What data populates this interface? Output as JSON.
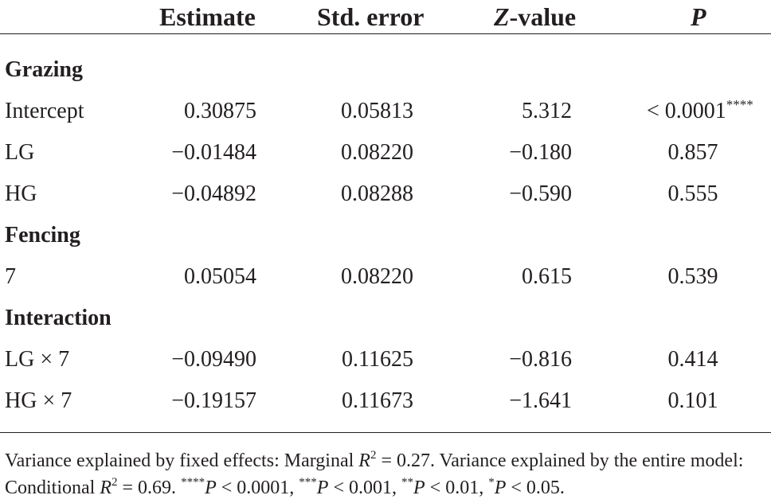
{
  "header": {
    "estimate": "Estimate",
    "std_error": "Std. error",
    "z_value_italic": "Z",
    "z_value_rest": "-value",
    "p": "P"
  },
  "sections": [
    {
      "label": "Grazing",
      "rows": [
        {
          "term": "Intercept",
          "estimate": "0.30875",
          "std_error": "0.05813",
          "z": "5.312",
          "p": "< 0.0001",
          "p_stars": "****"
        },
        {
          "term": "LG",
          "estimate": "−0.01484",
          "std_error": "0.08220",
          "z": "−0.180",
          "p": "0.857"
        },
        {
          "term": "HG",
          "estimate": "−0.04892",
          "std_error": "0.08288",
          "z": "−0.590",
          "p": "0.555"
        }
      ]
    },
    {
      "label": "Fencing",
      "rows": [
        {
          "term": "7",
          "estimate": "0.05054",
          "std_error": "0.08220",
          "z": "0.615",
          "p": "0.539"
        }
      ]
    },
    {
      "label": "Interaction",
      "rows": [
        {
          "term": "LG × 7",
          "estimate": "−0.09490",
          "std_error": "0.11625",
          "z": "−0.816",
          "p": "0.414"
        },
        {
          "term": "HG × 7",
          "estimate": "−0.19157",
          "std_error": "0.11673",
          "z": "−1.641",
          "p": "0.101"
        }
      ]
    }
  ],
  "footnote": {
    "part1": "Variance explained by fixed effects: Marginal ",
    "r": "R",
    "sq": "2",
    "part2": " = 0.27. Variance explained by the entire model: Conditional ",
    "part3": " = 0.69. ",
    "s4": "****",
    "s4_text": " < 0.0001, ",
    "s3": "***",
    "s3_text": " < 0.001, ",
    "s2": "**",
    "s2_text": " < 0.01, ",
    "s1": "*",
    "s1_text": " < 0.05.",
    "p": "P"
  }
}
